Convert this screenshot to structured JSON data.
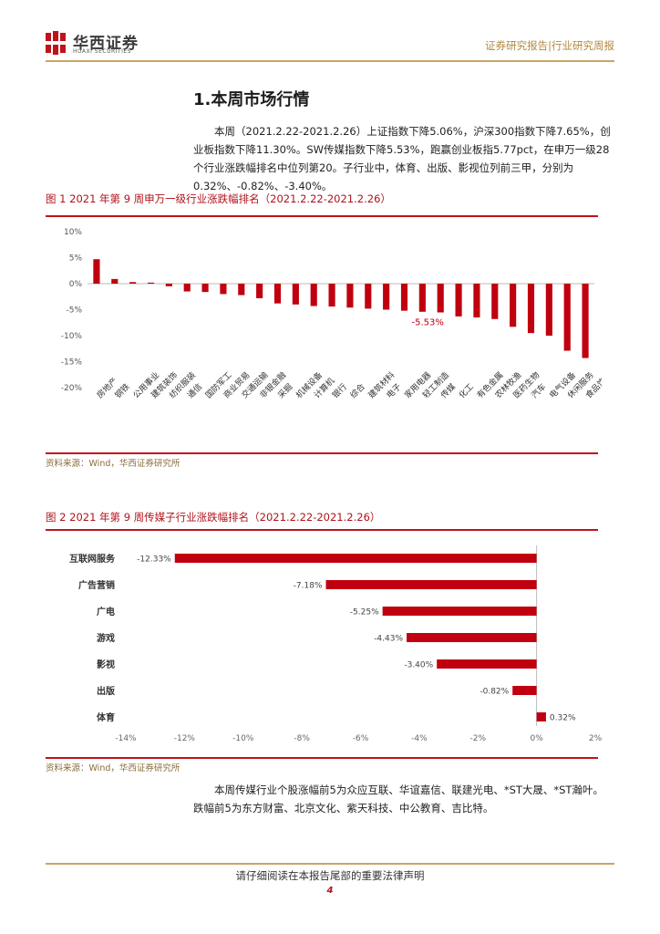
{
  "header": {
    "logo_cn": "华西证券",
    "logo_en": "HUAXI SECURITIES",
    "right_text": "证券研究报告|行业研究周报",
    "brand_color": "#b0131b",
    "accent_gold": "#c9a463"
  },
  "section": {
    "title": "1.本周市场行情",
    "para1": "本周（2021.2.22-2021.2.26）上证指数下降5.06%，沪深300指数下降7.65%，创业板指数下降11.30%。SW传媒指数下降5.53%，跑赢创业板指5.77pct，在申万一级28个行业涨跌幅排名中位列第20。子行业中，体育、出版、影视位列前三甲，分别为0.32%、-0.82%、-3.40%。",
    "para2": "本周传媒行业个股涨幅前5为众应互联、华谊嘉信、联建光电、*ST大晟、*ST瀚叶。跌幅前5为东方财富、北京文化、紫天科技、中公教育、吉比特。"
  },
  "figure1": {
    "title": "图 1 2021 年第 9 周申万一级行业涨跌幅排名（2021.2.22-2021.2.26）",
    "source": "资料来源：Wind，华西证券研究所"
  },
  "figure2": {
    "title": "图 2 2021 年第 9 周传媒子行业涨跌幅排名（2021.2.22-2021.2.26）",
    "source": "资料来源：Wind，华西证券研究所"
  },
  "chart_data": [
    {
      "type": "bar",
      "orientation": "vertical",
      "categories": [
        "房地产",
        "钢铁",
        "公用事业",
        "建筑装饰",
        "纺织服装",
        "通信",
        "国防军工",
        "商业贸易",
        "交通运输",
        "非银金融",
        "采掘",
        "机械设备",
        "计算机",
        "银行",
        "综合",
        "建筑材料",
        "电子",
        "家用电器",
        "轻工制造",
        "传媒",
        "化工",
        "有色金属",
        "农林牧渔",
        "医药生物",
        "汽车",
        "电气设备",
        "休闲服务",
        "食品饮料"
      ],
      "values": [
        4.7,
        0.9,
        0.3,
        0.2,
        -0.5,
        -1.5,
        -1.6,
        -2.0,
        -2.2,
        -2.8,
        -3.8,
        -4.0,
        -4.3,
        -4.4,
        -4.6,
        -4.8,
        -5.0,
        -5.2,
        -5.4,
        -5.53,
        -6.3,
        -6.5,
        -6.8,
        -8.3,
        -9.5,
        -10.0,
        -12.9,
        -14.3
      ],
      "highlight_label": "-5.53%",
      "highlight_category": "传媒",
      "yticks": [
        "10%",
        "5%",
        "0%",
        "-5%",
        "-10%",
        "-15%",
        "-20%"
      ],
      "ylim": [
        -20,
        10
      ],
      "bar_color": "#c0000f"
    },
    {
      "type": "bar",
      "orientation": "horizontal",
      "categories": [
        "互联网服务",
        "广告营销",
        "广电",
        "游戏",
        "影视",
        "出版",
        "体育"
      ],
      "values": [
        -12.33,
        -7.18,
        -5.25,
        -4.43,
        -3.4,
        -0.82,
        0.32
      ],
      "data_labels": [
        "-12.33%",
        "-7.18%",
        "-5.25%",
        "-4.43%",
        "-3.40%",
        "-0.82%",
        "0.32%"
      ],
      "xticks": [
        "-14%",
        "-12%",
        "-10%",
        "-8%",
        "-6%",
        "-4%",
        "-2%",
        "0%",
        "2%"
      ],
      "xlim": [
        -14,
        2
      ],
      "bar_color": "#c0000f"
    }
  ],
  "footer": {
    "text": "请仔细阅读在本报告尾部的重要法律声明",
    "page": "4"
  }
}
